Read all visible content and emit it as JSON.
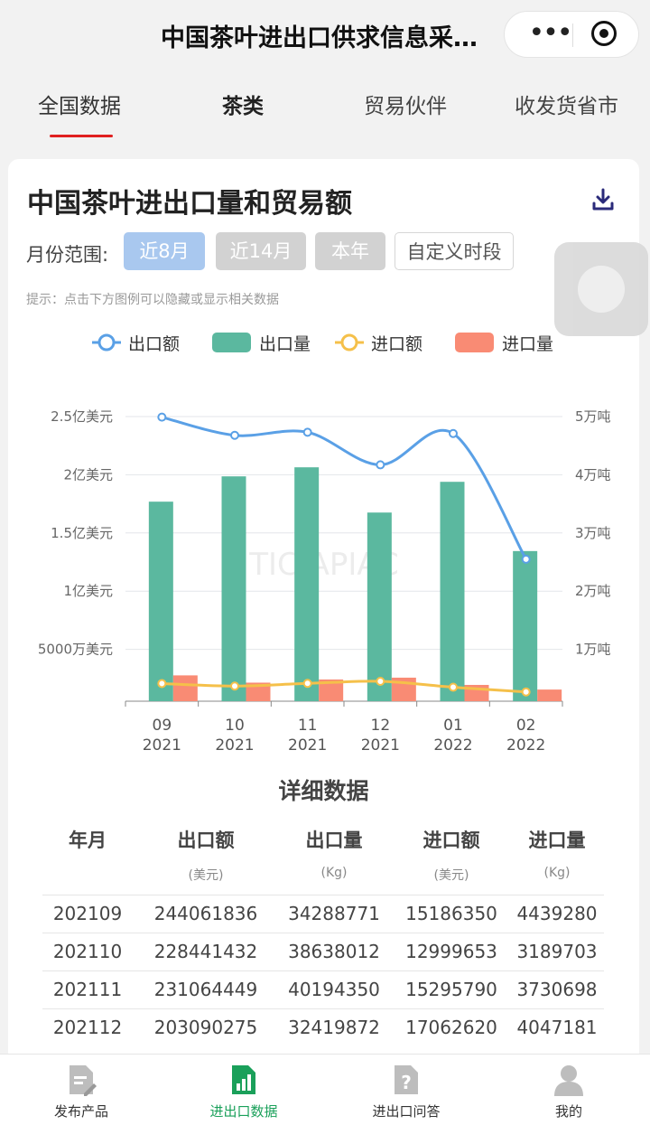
{
  "app": {
    "title": "中国茶叶进出口供求信息采…"
  },
  "tabs": [
    {
      "label": "全国数据"
    },
    {
      "label": "茶类"
    },
    {
      "label": "贸易伙伴"
    },
    {
      "label": "收发货省市"
    }
  ],
  "card": {
    "title": "中国茶叶进出口量和贸易额",
    "range_label": "月份范围:",
    "range_options": [
      "近8月",
      "近14月",
      "本年",
      "自定义时段"
    ],
    "hint": "提示：点击下方图例可以隐藏或显示相关数据"
  },
  "colors": {
    "export_value": "#5aa0e6",
    "export_volume": "#5bb89f",
    "import_value": "#f5c04a",
    "import_volume": "#f98b74",
    "active_tab_underline": "#e02020",
    "active_nav": "#1aa05a"
  },
  "chart_data": {
    "type": "bar",
    "categories": [
      "09\n2021",
      "10\n2021",
      "11\n2021",
      "12\n2021",
      "01\n2022",
      "02\n2022"
    ],
    "x_ticks": [
      {
        "month": "09",
        "year": "2021"
      },
      {
        "month": "10",
        "year": "2021"
      },
      {
        "month": "11",
        "year": "2021"
      },
      {
        "month": "12",
        "year": "2021"
      },
      {
        "month": "01",
        "year": "2022"
      },
      {
        "month": "02",
        "year": "2022"
      }
    ],
    "legend": [
      "出口额",
      "出口量",
      "进口额",
      "进口量"
    ],
    "left_axis_ticks": [
      "2.5亿美元",
      "2亿美元",
      "1.5亿美元",
      "1亿美元",
      "5000万美元"
    ],
    "right_axis_ticks": [
      "5万吨",
      "4万吨",
      "3万吨",
      "2万吨",
      "1万吨"
    ],
    "y_left_range": [
      0,
      250000000
    ],
    "y_right_range": [
      0,
      50000
    ],
    "series": [
      {
        "name": "出口额",
        "type": "line",
        "axis": "left",
        "values": [
          244061836,
          228441432,
          231064449,
          203090275,
          230000000,
          122000000
        ]
      },
      {
        "name": "出口量",
        "type": "bar",
        "axis": "right",
        "values": [
          34289,
          38638,
          40194,
          32420,
          37700,
          25800
        ]
      },
      {
        "name": "进口额",
        "type": "line",
        "axis": "left",
        "values": [
          15186350,
          12999653,
          15295790,
          17062620,
          12000000,
          8000000
        ]
      },
      {
        "name": "进口量",
        "type": "bar",
        "axis": "right",
        "values": [
          4439,
          3190,
          3731,
          4047,
          2800,
          2000
        ]
      }
    ],
    "grid": true,
    "legend_position": "top"
  },
  "table": {
    "title": "详细数据",
    "headers": [
      "年月",
      "出口额",
      "出口量",
      "进口额",
      "进口量"
    ],
    "units": [
      "",
      "(美元)",
      "(Kg)",
      "(美元)",
      "(Kg)"
    ],
    "rows": [
      [
        "202109",
        "244061836",
        "34288771",
        "15186350",
        "4439280"
      ],
      [
        "202110",
        "228441432",
        "38638012",
        "12999653",
        "3189703"
      ],
      [
        "202111",
        "231064449",
        "40194350",
        "15295790",
        "3730698"
      ],
      [
        "202112",
        "203090275",
        "32419872",
        "17062620",
        "4047181"
      ]
    ]
  },
  "bottom_nav": [
    {
      "label": "发布产品",
      "icon": "document-edit-icon"
    },
    {
      "label": "进出口数据",
      "icon": "chart-icon"
    },
    {
      "label": "进出口问答",
      "icon": "question-document-icon"
    },
    {
      "label": "我的",
      "icon": "user-icon"
    }
  ]
}
